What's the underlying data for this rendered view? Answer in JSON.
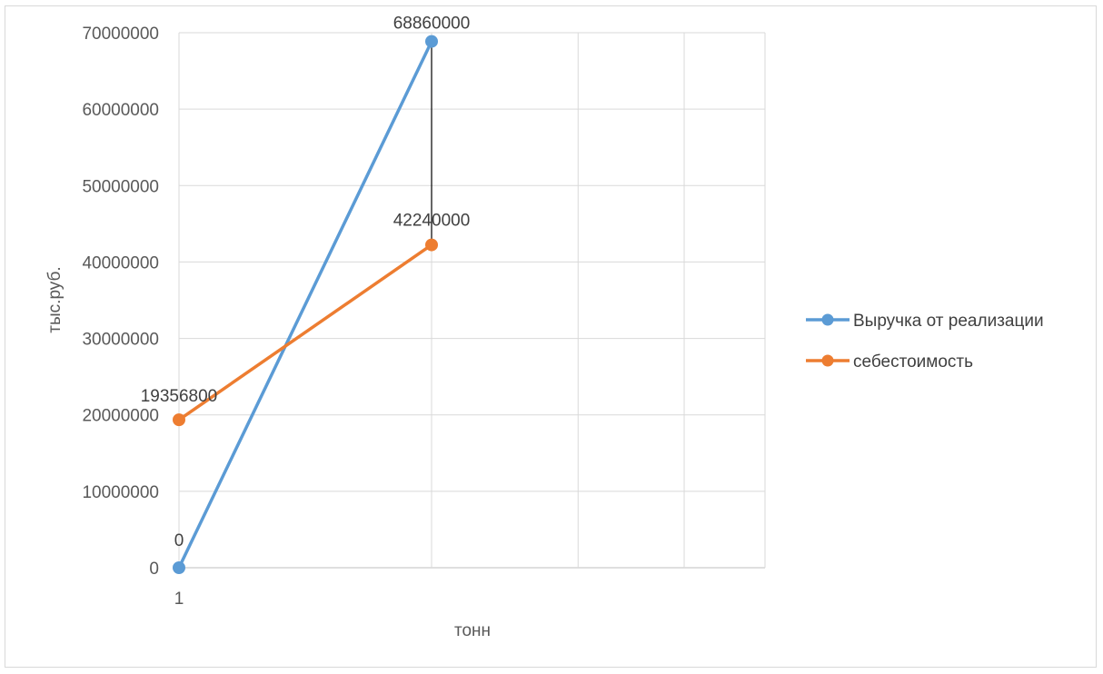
{
  "chart_data": {
    "type": "line",
    "title": "",
    "xlabel": "тонн",
    "ylabel": "тыс.руб.",
    "x_tick_labels": [
      "1"
    ],
    "ylim": [
      0,
      70000000
    ],
    "y_ticks": [
      0,
      10000000,
      20000000,
      30000000,
      40000000,
      50000000,
      60000000,
      70000000
    ],
    "x_range": [
      1,
      3.32
    ],
    "grid": true,
    "legend_position": "right",
    "series": [
      {
        "name": "Выручка от реализации",
        "color": "#5b9bd5",
        "points": [
          {
            "x": 1,
            "y": 0
          },
          {
            "x": 2,
            "y": 68860000
          }
        ],
        "data_labels": [
          "0",
          "68860000"
        ]
      },
      {
        "name": "себестоимость",
        "color": "#ed7d31",
        "points": [
          {
            "x": 1,
            "y": 19356800
          },
          {
            "x": 2,
            "y": 42240000
          }
        ],
        "data_labels": [
          "19356800",
          "42240000"
        ]
      }
    ],
    "drop_line": {
      "color": "#000000",
      "x": 2,
      "from": 42240000,
      "to": 68860000
    }
  }
}
